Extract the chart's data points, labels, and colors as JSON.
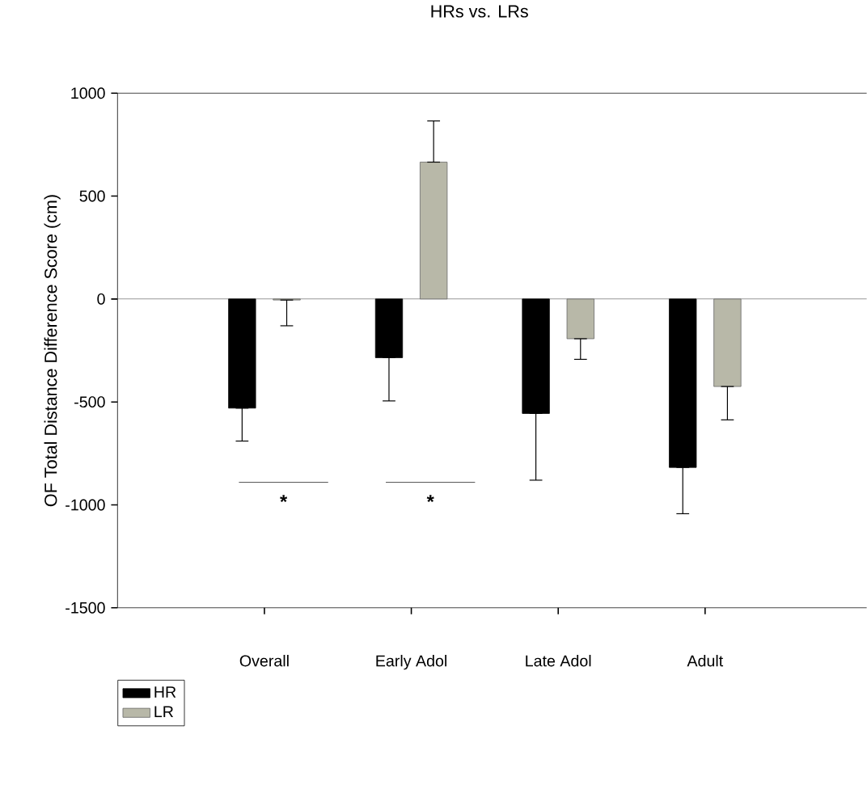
{
  "chart_data": {
    "type": "bar",
    "title": "HRs vs. LRs",
    "ylabel": "OF Total Distance Difference Score (cm)",
    "categories": [
      "Overall",
      "Early Adol",
      "Late Adol",
      "Adult"
    ],
    "series": [
      {
        "name": "HR",
        "color": "#000000",
        "values": [
          -530,
          -285,
          -556,
          -818
        ],
        "errors": [
          [
            -690,
            -530
          ],
          [
            -495,
            -285
          ],
          [
            -880,
            -556
          ],
          [
            -1043,
            -818
          ]
        ]
      },
      {
        "name": "LR",
        "color": "#b8b8a8",
        "values": [
          -5,
          665,
          -193,
          -425
        ],
        "errors": [
          [
            -130,
            -5
          ],
          [
            665,
            865
          ],
          [
            -293,
            -193
          ],
          [
            -587,
            -425
          ]
        ]
      }
    ],
    "ylim": [
      -1500,
      1000
    ],
    "yticks": [
      -1500,
      -1000,
      -500,
      0,
      500,
      1000
    ],
    "ref_lines": [
      {
        "axis": "y",
        "value": 0,
        "color": "#606060"
      }
    ],
    "annotations": [
      "*",
      "*"
    ],
    "legend": "bottom left",
    "grid": false
  }
}
